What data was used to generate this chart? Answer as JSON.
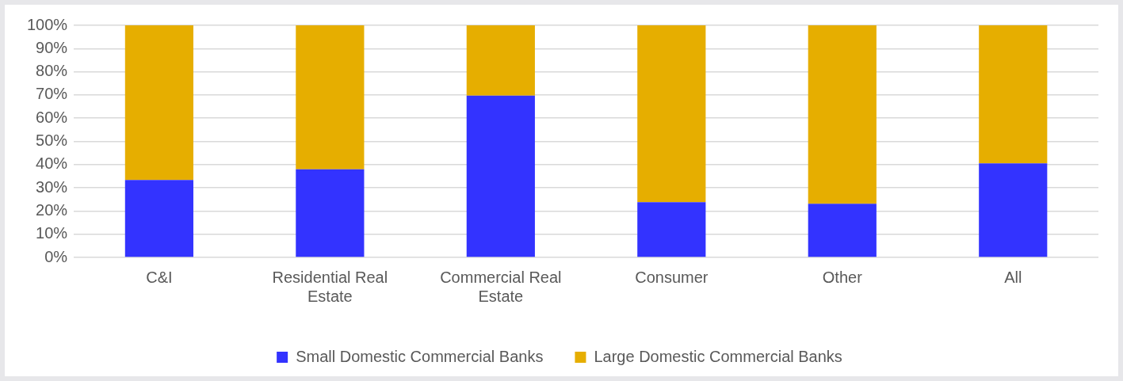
{
  "chart_data": {
    "type": "bar",
    "stacked": true,
    "categories": [
      "C&I",
      "Residential Real Estate",
      "Commercial Real Estate",
      "Consumer",
      "Other",
      "All"
    ],
    "series": [
      {
        "name": "Small Domestic Commercial Banks",
        "color": "#3333ff",
        "values": [
          33.4,
          38,
          69.7,
          23.8,
          23.1,
          40.5
        ]
      },
      {
        "name": "Large Domestic Commercial Banks",
        "color": "#e6ae00",
        "values": [
          66.6,
          62,
          30.3,
          76.2,
          76.9,
          59.5
        ]
      }
    ],
    "ylim": [
      0,
      100
    ],
    "yticks": [
      {
        "value": 0,
        "label": "0%"
      },
      {
        "value": 10,
        "label": "10%"
      },
      {
        "value": 20,
        "label": "20%"
      },
      {
        "value": 30,
        "label": "30%"
      },
      {
        "value": 40,
        "label": "40%"
      },
      {
        "value": 50,
        "label": "50%"
      },
      {
        "value": 60,
        "label": "60%"
      },
      {
        "value": 70,
        "label": "70%"
      },
      {
        "value": 80,
        "label": "80%"
      },
      {
        "value": 90,
        "label": "90%"
      },
      {
        "value": 100,
        "label": "100%"
      }
    ],
    "grid": "y",
    "legend": "bottom"
  }
}
